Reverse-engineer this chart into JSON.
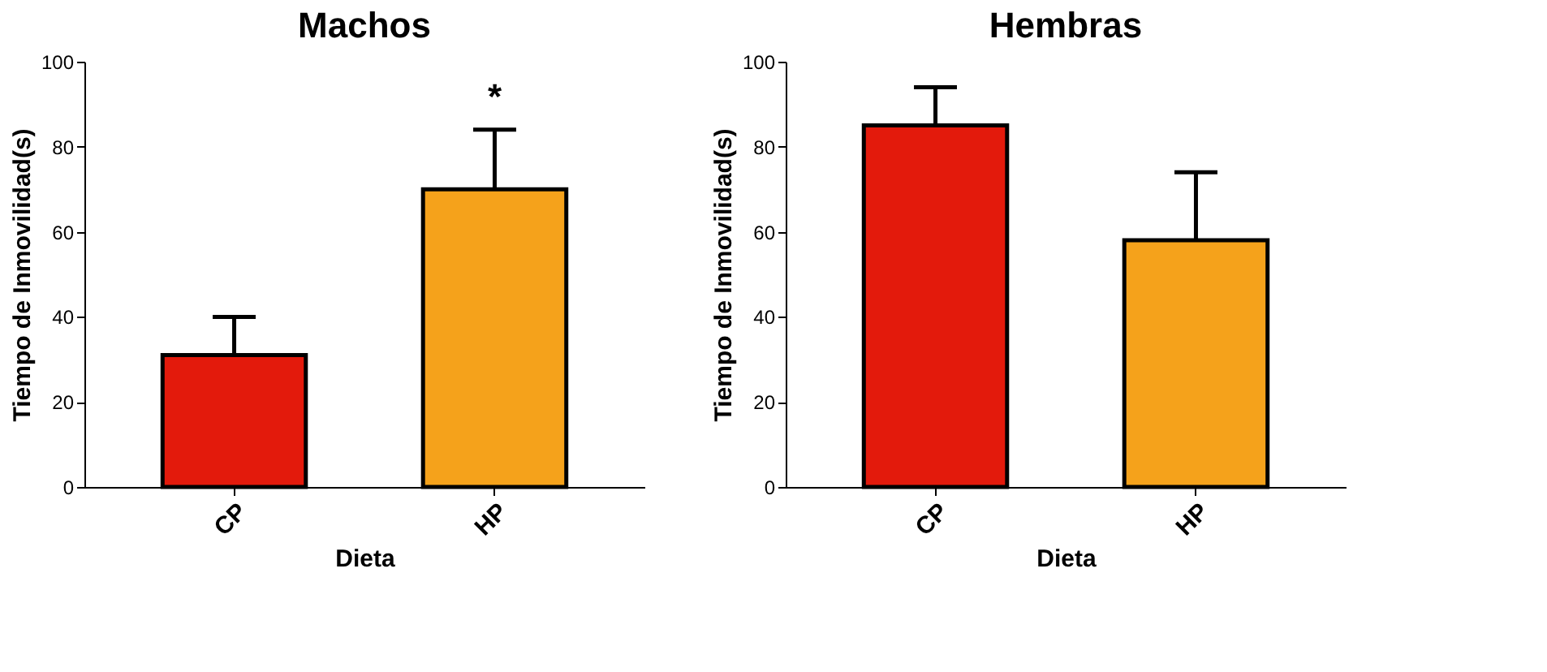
{
  "chart_data": [
    {
      "type": "bar",
      "title": "Machos",
      "xlabel": "Dieta",
      "ylabel": "Tiempo de Inmovilidad(s)",
      "categories": [
        "CP",
        "HP"
      ],
      "values": [
        31,
        70
      ],
      "colors": [
        "#e31a0c",
        "#f5a21b"
      ],
      "errors": [
        [
          31,
          40
        ],
        [
          70,
          84
        ]
      ],
      "ylim": [
        0,
        100
      ],
      "yticks": [
        0,
        20,
        40,
        60,
        80,
        100
      ],
      "grid": false,
      "annotations": [
        {
          "text": "*",
          "x": "HP",
          "y": 84
        }
      ]
    },
    {
      "type": "bar",
      "title": "Hembras",
      "xlabel": "Dieta",
      "ylabel": "Tiempo de Inmovilidad(s)",
      "categories": [
        "CP",
        "HP"
      ],
      "values": [
        85,
        58
      ],
      "colors": [
        "#e31a0c",
        "#f5a21b"
      ],
      "errors": [
        [
          85,
          94
        ],
        [
          58,
          74
        ]
      ],
      "ylim": [
        0,
        100
      ],
      "yticks": [
        0,
        20,
        40,
        60,
        80,
        100
      ],
      "grid": false
    }
  ]
}
